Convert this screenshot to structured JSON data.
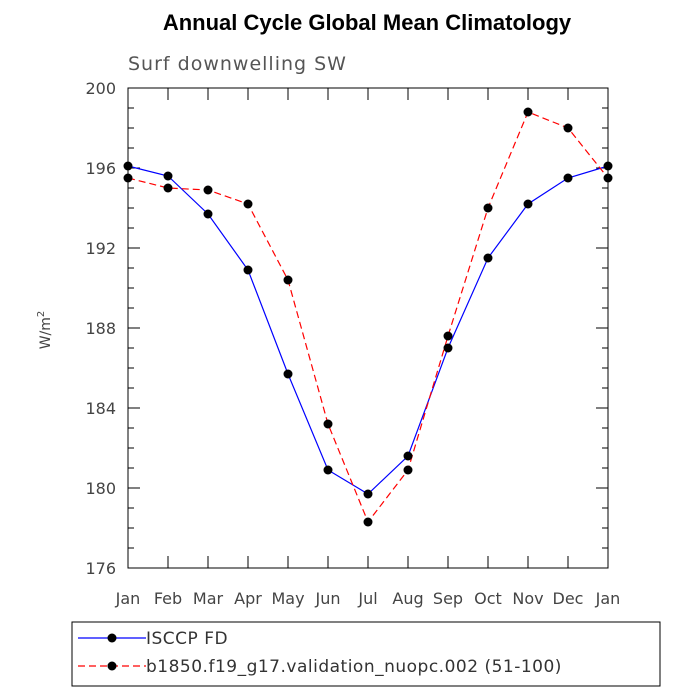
{
  "chart_data": {
    "type": "line",
    "title": "Annual Cycle Global Mean Climatology",
    "subtitle": "Surf downwelling SW",
    "ylabel": "W/m",
    "ylabel_sup": "2",
    "ylim": [
      176,
      200
    ],
    "yticks": [
      "176",
      "180",
      "184",
      "188",
      "192",
      "196",
      "200"
    ],
    "categories": [
      "Jan",
      "Feb",
      "Mar",
      "Apr",
      "May",
      "Jun",
      "Jul",
      "Aug",
      "Sep",
      "Oct",
      "Nov",
      "Dec",
      "Jan"
    ],
    "series": [
      {
        "name": "ISCCP FD",
        "color": "#0000ff",
        "dash": "solid",
        "values": [
          196.1,
          195.6,
          193.7,
          190.9,
          185.7,
          180.9,
          179.7,
          181.6,
          187.0,
          191.5,
          194.2,
          195.5,
          196.1
        ]
      },
      {
        "name": "b1850.f19_g17.validation_nuopc.002 (51-100)",
        "color": "#ff0000",
        "dash": "dashed",
        "values": [
          195.5,
          195.0,
          194.9,
          194.2,
          190.4,
          183.2,
          178.3,
          180.9,
          187.6,
          194.0,
          198.8,
          198.0,
          195.5
        ]
      }
    ],
    "grid": false,
    "legend_position": "bottom"
  }
}
